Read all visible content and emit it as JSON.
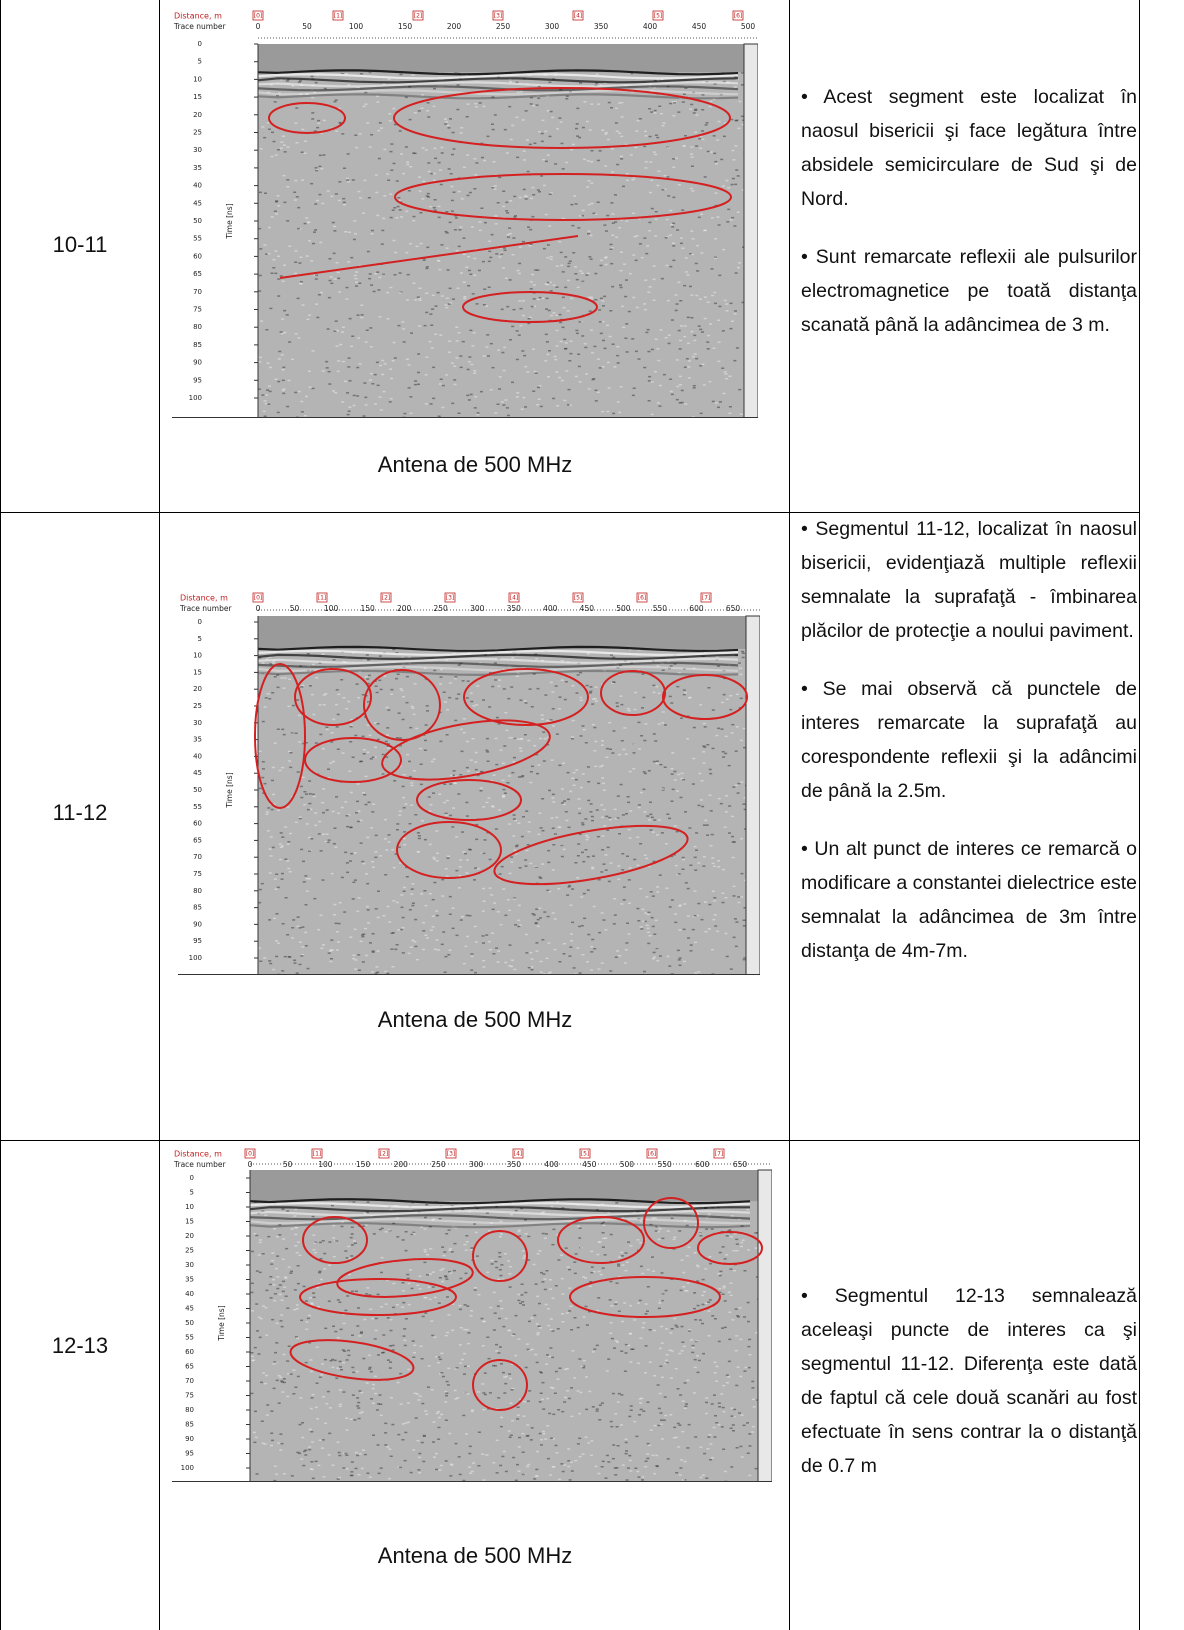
{
  "table": {
    "rows": [
      {
        "segment": "10-11",
        "radargram": {
          "distance_label": "Distance, m",
          "trace_label": "Trace number",
          "time_label": "Time [ns]",
          "distance_marks": [
            "[0]",
            "[1]",
            "[2]",
            "[3]",
            "[4]",
            "[5]",
            "[6]"
          ],
          "trace_ticks": [
            "0",
            "50",
            "100",
            "150",
            "200",
            "250",
            "300",
            "350",
            "400",
            "450",
            "500"
          ],
          "time_ticks": [
            "0",
            "5",
            "10",
            "15",
            "20",
            "25",
            "30",
            "35",
            "40",
            "45",
            "50",
            "55",
            "60",
            "65",
            "70",
            "75",
            "80",
            "85",
            "90",
            "95",
            "100"
          ]
        },
        "caption": "Antena de 500 MHz",
        "bullets": [
          "• Acest segment este localizat în naosul bisericii şi face legătura între absidele semicirculare de Sud şi de Nord.",
          "• Sunt remarcate reflexii ale pulsurilor electromagnetice pe toată distanţa scanată până la adâncimea de 3 m."
        ]
      },
      {
        "segment": "11-12",
        "radargram": {
          "distance_label": "Distance, m",
          "trace_label": "Trace number",
          "time_label": "Time [ns]",
          "distance_marks": [
            "[0]",
            "[1]",
            "[2]",
            "[3]",
            "[4]",
            "[5]",
            "[6]",
            "[7]"
          ],
          "trace_ticks": [
            "0",
            "50",
            "100",
            "150",
            "200",
            "250",
            "300",
            "350",
            "400",
            "450",
            "500",
            "550",
            "600",
            "650"
          ],
          "time_ticks": [
            "0",
            "5",
            "10",
            "15",
            "20",
            "25",
            "30",
            "35",
            "40",
            "45",
            "50",
            "55",
            "60",
            "65",
            "70",
            "75",
            "80",
            "85",
            "90",
            "95",
            "100"
          ]
        },
        "caption": "Antena de 500 MHz",
        "bullets": [
          "• Segmentul 11-12, localizat în naosul bisericii, evidenţiază multiple reflexii semnalate la suprafaţă - îmbinarea plăcilor de protecţie a noului paviment.",
          "• Se mai observă că punctele de interes remarcate la suprafaţă au corespondente reflexii şi la adâncimi de până la 2.5m.",
          "• Un alt punct de interes ce remarcă o modificare a constantei dielectrice este semnalat la adâncimea de 3m între distanţa de 4m-7m."
        ]
      },
      {
        "segment": "12-13",
        "radargram": {
          "distance_label": "Distance, m",
          "trace_label": "Trace number",
          "time_label": "Time [ns]",
          "distance_marks": [
            "[0]",
            "[1]",
            "[2]",
            "[3]",
            "[4]",
            "[5]",
            "[6]",
            "[7]"
          ],
          "trace_ticks": [
            "0",
            "50",
            "100",
            "150",
            "200",
            "250",
            "300",
            "350",
            "400",
            "450",
            "500",
            "550",
            "600",
            "650"
          ],
          "time_ticks": [
            "0",
            "5",
            "10",
            "15",
            "20",
            "25",
            "30",
            "35",
            "40",
            "45",
            "50",
            "55",
            "60",
            "65",
            "70",
            "75",
            "80",
            "85",
            "90",
            "95",
            "100"
          ]
        },
        "caption": "Antena de 500 MHz",
        "bullets": [
          "• Segmentul 12-13 semnalează aceleaşi puncte de interes ca şi segmentul 11-12. Diferenţa este dată de faptul că cele două scanări au fost efectuate în sens contrar la o distanţă de 0.7 m"
        ]
      }
    ]
  }
}
